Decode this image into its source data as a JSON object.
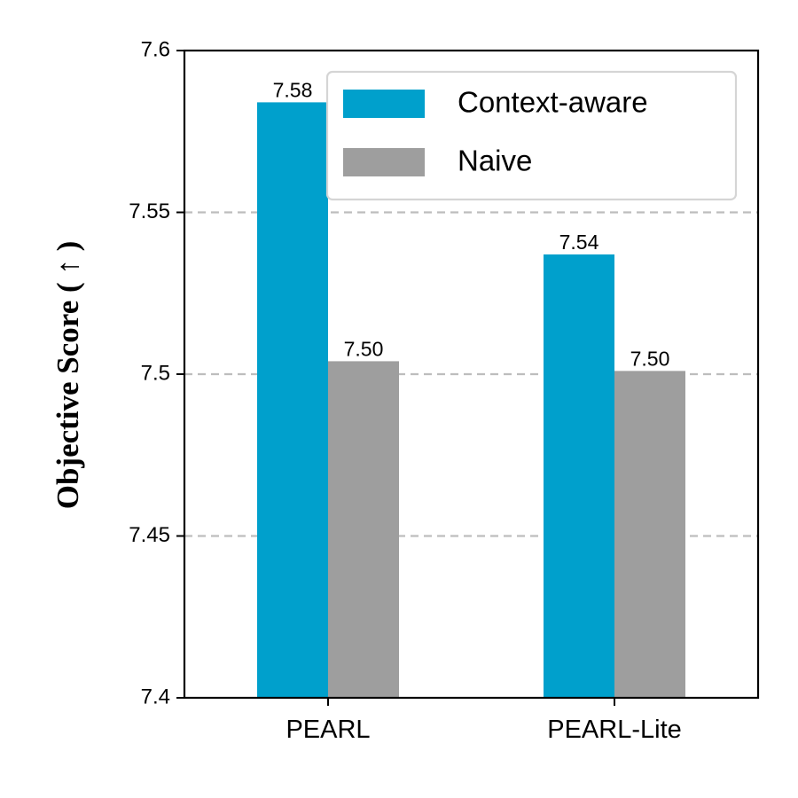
{
  "chart_data": {
    "type": "bar",
    "categories": [
      "PEARL",
      "PEARL-Lite"
    ],
    "series": [
      {
        "name": "Context-aware",
        "values": [
          7.584,
          7.537
        ],
        "labels": [
          "7.58",
          "7.54"
        ],
        "color": "#00A0CC"
      },
      {
        "name": "Naive",
        "values": [
          7.504,
          7.501
        ],
        "labels": [
          "7.50",
          "7.50"
        ],
        "color": "#9E9E9E"
      }
    ],
    "xlabel": "",
    "ylabel": "Objective Score ( ↑ )",
    "ylim": [
      7.4,
      7.6
    ],
    "yticks": [
      7.4,
      7.45,
      7.5,
      7.55,
      7.6
    ],
    "ytick_labels": [
      "7.4",
      "7.45",
      "7.5",
      "7.55",
      "7.6"
    ],
    "grid": "horizontal dashed",
    "legend_position": "top-right"
  }
}
